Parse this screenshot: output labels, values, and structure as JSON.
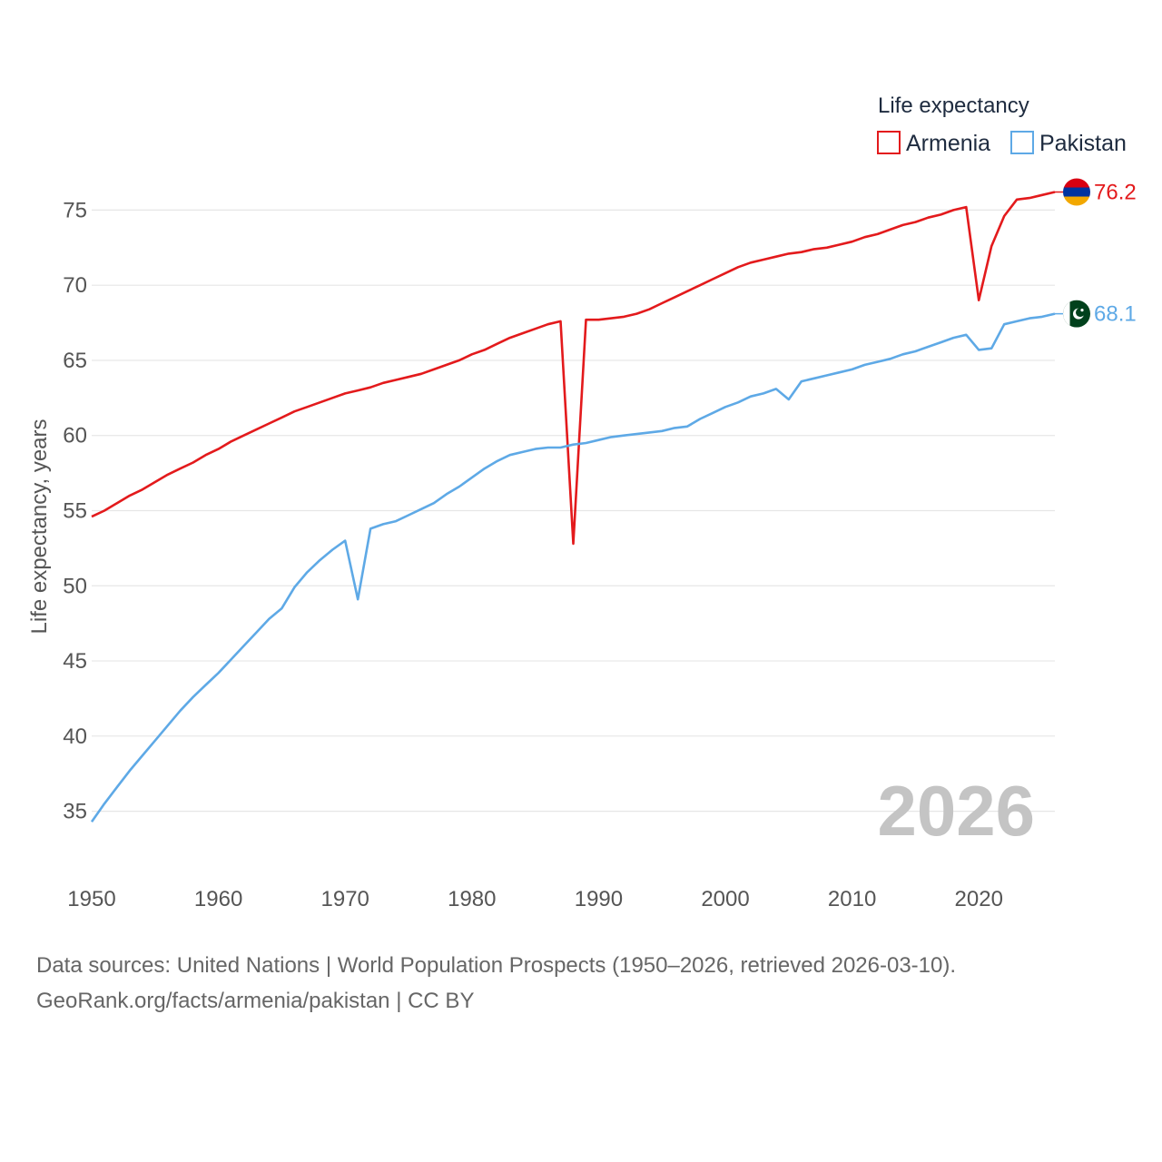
{
  "chart_data": {
    "type": "line",
    "legend_title": "Life expectancy",
    "ylabel": "Life expectancy, years",
    "xlabel": "",
    "xlim": [
      1950,
      2026
    ],
    "ylim": [
      32.5,
      77.5
    ],
    "x_ticks": [
      1950,
      1960,
      1970,
      1980,
      1990,
      2000,
      2010,
      2020
    ],
    "y_ticks": [
      35,
      40,
      45,
      50,
      55,
      60,
      65,
      70,
      75
    ],
    "grid": true,
    "legend_position": "top-right",
    "year_label": "2026",
    "series": [
      {
        "name": "Armenia",
        "color": "#e31a1c",
        "end_label": "76.2",
        "flag_icon": "armenia-flag-icon",
        "x": [
          1950,
          1951,
          1952,
          1953,
          1954,
          1955,
          1956,
          1957,
          1958,
          1959,
          1960,
          1961,
          1962,
          1963,
          1964,
          1965,
          1966,
          1967,
          1968,
          1969,
          1970,
          1971,
          1972,
          1973,
          1974,
          1975,
          1976,
          1977,
          1978,
          1979,
          1980,
          1981,
          1982,
          1983,
          1984,
          1985,
          1986,
          1987,
          1988,
          1989,
          1990,
          1991,
          1992,
          1993,
          1994,
          1995,
          1996,
          1997,
          1998,
          1999,
          2000,
          2001,
          2002,
          2003,
          2004,
          2005,
          2006,
          2007,
          2008,
          2009,
          2010,
          2011,
          2012,
          2013,
          2014,
          2015,
          2016,
          2017,
          2018,
          2019,
          2020,
          2021,
          2022,
          2023,
          2024,
          2025,
          2026
        ],
        "values": [
          54.6,
          55.0,
          55.5,
          56.0,
          56.4,
          56.9,
          57.4,
          57.8,
          58.2,
          58.7,
          59.1,
          59.6,
          60.0,
          60.4,
          60.8,
          61.2,
          61.6,
          61.9,
          62.2,
          62.5,
          62.8,
          63.0,
          63.2,
          63.5,
          63.7,
          63.9,
          64.1,
          64.4,
          64.7,
          65.0,
          65.4,
          65.7,
          66.1,
          66.5,
          66.8,
          67.1,
          67.4,
          67.6,
          52.8,
          67.7,
          67.7,
          67.8,
          67.9,
          68.1,
          68.4,
          68.8,
          69.2,
          69.6,
          70.0,
          70.4,
          70.8,
          71.2,
          71.5,
          71.7,
          71.9,
          72.1,
          72.2,
          72.4,
          72.5,
          72.7,
          72.9,
          73.2,
          73.4,
          73.7,
          74.0,
          74.2,
          74.5,
          74.7,
          75.0,
          75.2,
          69.0,
          72.6,
          74.6,
          75.7,
          75.8,
          76.0,
          76.2
        ]
      },
      {
        "name": "Pakistan",
        "color": "#5ea9e6",
        "end_label": "68.1",
        "flag_icon": "pakistan-flag-icon",
        "x": [
          1950,
          1951,
          1952,
          1953,
          1954,
          1955,
          1956,
          1957,
          1958,
          1959,
          1960,
          1961,
          1962,
          1963,
          1964,
          1965,
          1966,
          1967,
          1968,
          1969,
          1970,
          1971,
          1972,
          1973,
          1974,
          1975,
          1976,
          1977,
          1978,
          1979,
          1980,
          1981,
          1982,
          1983,
          1984,
          1985,
          1986,
          1987,
          1988,
          1989,
          1990,
          1991,
          1992,
          1993,
          1994,
          1995,
          1996,
          1997,
          1998,
          1999,
          2000,
          2001,
          2002,
          2003,
          2004,
          2005,
          2006,
          2007,
          2008,
          2009,
          2010,
          2011,
          2012,
          2013,
          2014,
          2015,
          2016,
          2017,
          2018,
          2019,
          2020,
          2021,
          2022,
          2023,
          2024,
          2025,
          2026
        ],
        "values": [
          34.3,
          35.5,
          36.6,
          37.7,
          38.7,
          39.7,
          40.7,
          41.7,
          42.6,
          43.4,
          44.2,
          45.1,
          46.0,
          46.9,
          47.8,
          48.5,
          49.9,
          50.9,
          51.7,
          52.4,
          53.0,
          49.1,
          53.8,
          54.1,
          54.3,
          54.7,
          55.1,
          55.5,
          56.1,
          56.6,
          57.2,
          57.8,
          58.3,
          58.7,
          58.9,
          59.1,
          59.2,
          59.2,
          59.4,
          59.5,
          59.7,
          59.9,
          60.0,
          60.1,
          60.2,
          60.3,
          60.5,
          60.6,
          61.1,
          61.5,
          61.9,
          62.2,
          62.6,
          62.8,
          63.1,
          62.4,
          63.6,
          63.8,
          64.0,
          64.2,
          64.4,
          64.7,
          64.9,
          65.1,
          65.4,
          65.6,
          65.9,
          66.2,
          66.5,
          66.7,
          65.7,
          65.8,
          67.4,
          67.6,
          67.8,
          67.9,
          68.1
        ]
      }
    ]
  },
  "source": {
    "line1": "Data sources: United Nations | World Population Prospects (1950–2026, retrieved 2026-03-10).",
    "line2": "GeoRank.org/facts/armenia/pakistan | CC BY"
  }
}
